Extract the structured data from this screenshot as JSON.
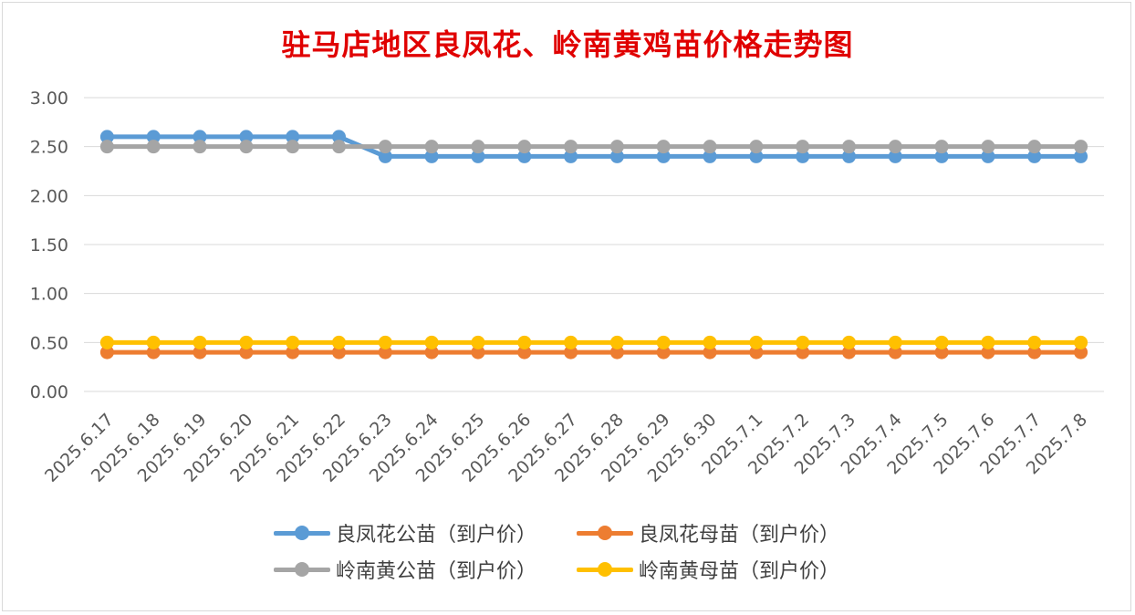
{
  "chart_data": {
    "type": "line",
    "title": "驻马店地区良凤花、岭南黄鸡苗价格走势图",
    "xlabel": "",
    "ylabel": "",
    "ylim": [
      0,
      3
    ],
    "yticks": [
      "0.00",
      "0.50",
      "1.00",
      "1.50",
      "2.00",
      "2.50",
      "3.00"
    ],
    "grid": true,
    "legend_position": "bottom",
    "categories": [
      "2025.6.17",
      "2025.6.18",
      "2025.6.19",
      "2025.6.20",
      "2025.6.21",
      "2025.6.22",
      "2025.6.23",
      "2025.6.24",
      "2025.6.25",
      "2025.6.26",
      "2025.6.27",
      "2025.6.28",
      "2025.6.29",
      "2025.6.30",
      "2025.7.1",
      "2025.7.2",
      "2025.7.3",
      "2025.7.4",
      "2025.7.5",
      "2025.7.6",
      "2025.7.7",
      "2025.7.8"
    ],
    "series": [
      {
        "name": "良凤花公苗（到户价）",
        "color": "#5b9bd5",
        "values": [
          2.6,
          2.6,
          2.6,
          2.6,
          2.6,
          2.6,
          2.4,
          2.4,
          2.4,
          2.4,
          2.4,
          2.4,
          2.4,
          2.4,
          2.4,
          2.4,
          2.4,
          2.4,
          2.4,
          2.4,
          2.4,
          2.4
        ]
      },
      {
        "name": "良凤花母苗（到户价）",
        "color": "#ed7d31",
        "values": [
          0.4,
          0.4,
          0.4,
          0.4,
          0.4,
          0.4,
          0.4,
          0.4,
          0.4,
          0.4,
          0.4,
          0.4,
          0.4,
          0.4,
          0.4,
          0.4,
          0.4,
          0.4,
          0.4,
          0.4,
          0.4,
          0.4
        ]
      },
      {
        "name": "岭南黄公苗（到户价）",
        "color": "#a5a5a5",
        "values": [
          2.5,
          2.5,
          2.5,
          2.5,
          2.5,
          2.5,
          2.5,
          2.5,
          2.5,
          2.5,
          2.5,
          2.5,
          2.5,
          2.5,
          2.5,
          2.5,
          2.5,
          2.5,
          2.5,
          2.5,
          2.5,
          2.5
        ]
      },
      {
        "name": "岭南黄母苗（到户价）",
        "color": "#ffc000",
        "values": [
          0.5,
          0.5,
          0.5,
          0.5,
          0.5,
          0.5,
          0.5,
          0.5,
          0.5,
          0.5,
          0.5,
          0.5,
          0.5,
          0.5,
          0.5,
          0.5,
          0.5,
          0.5,
          0.5,
          0.5,
          0.5,
          0.5
        ]
      }
    ]
  }
}
